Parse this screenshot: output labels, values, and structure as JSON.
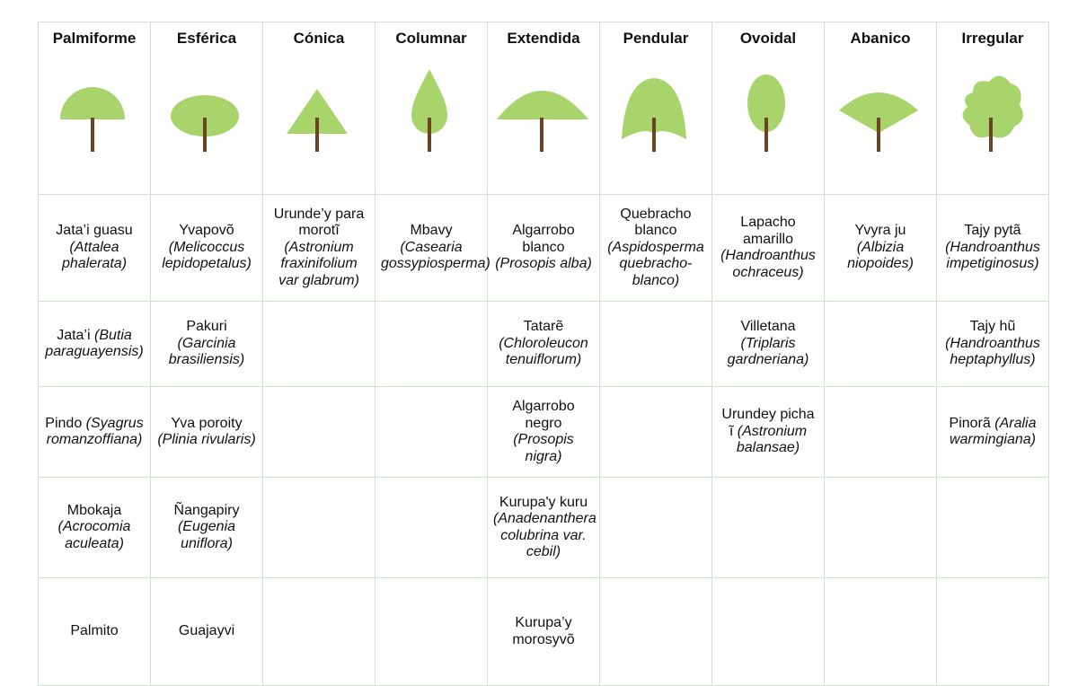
{
  "table": {
    "headers": [
      "Palmiforme",
      "Esférica",
      "Cónica",
      "Columnar",
      "Extendida",
      "Pendular",
      "Ovoidal",
      "Abanico",
      "Irregular"
    ],
    "rows": [
      [
        {
          "name": "Jata’i guasu",
          "sci": "(Attalea phalerata)"
        },
        {
          "name": "Yvapovõ",
          "sci": "(Melicoccus lepidopetalus)"
        },
        {
          "name": "Urunde’y para morotĩ",
          "sci": "(Astronium fraxinifolium var glabrum)"
        },
        {
          "name": "Mbavy",
          "sci": "(Casearia gossypiosperma)"
        },
        {
          "name": "Algarrobo blanco",
          "sci": "(Prosopis alba)"
        },
        {
          "name": "Quebracho blanco",
          "sci": "(Aspidosperma quebracho-blanco)"
        },
        {
          "name": "Lapacho amarillo",
          "sci": "(Handroanthus ochraceus)"
        },
        {
          "name": "Yvyra ju",
          "sci": "(Albizia niopoides)"
        },
        {
          "name": "Tajy pytã",
          "sci": "(Handroanthus impetiginosus)"
        }
      ],
      [
        {
          "name": "Jata’i",
          "sci": "(Butia paraguayensis)"
        },
        {
          "name": "Pakuri",
          "sci": "(Garcinia brasiliensis)"
        },
        null,
        null,
        {
          "name": "Tatarẽ",
          "sci": "(Chloroleucon tenuiflorum)"
        },
        null,
        {
          "name": "Villetana",
          "sci": "(Triplaris gardneriana)"
        },
        null,
        {
          "name": "Tajy hũ",
          "sci": "(Handroanthus heptaphyllus)"
        }
      ],
      [
        {
          "name": "Pindo",
          "sci": "(Syagrus romanzoffiana)"
        },
        {
          "name": "Yva poroity",
          "sci": "(Plinia rivularis)"
        },
        null,
        null,
        {
          "name": "Algarrobo negro",
          "sci": "(Prosopis nigra)"
        },
        null,
        {
          "name": "Urundey picha ĩ",
          "sci": "(Astronium balansae)"
        },
        null,
        {
          "name": "Pinorã",
          "sci": "(Aralia warmingiana)"
        }
      ],
      [
        {
          "name": "Mbokaja",
          "sci": "(Acrocomia aculeata)"
        },
        {
          "name": "Ñangapiry",
          "sci": "(Eugenia uniflora)"
        },
        null,
        null,
        {
          "name": "Kurupa'y kuru",
          "sci": "(Anadenanthera colubrina var. cebil)"
        },
        null,
        null,
        null,
        null
      ],
      [
        {
          "name": "Palmito"
        },
        {
          "name": "Guajayvi"
        },
        null,
        null,
        {
          "name": "Kurupa’y morosyvõ"
        },
        null,
        null,
        null,
        null
      ]
    ]
  }
}
